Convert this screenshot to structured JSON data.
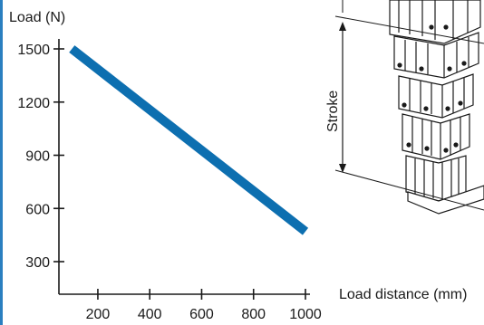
{
  "chart_data": {
    "type": "line",
    "title": "",
    "ylabel": "Load (N)",
    "xlabel": "Load distance (mm)",
    "xlim": [
      50,
      1000
    ],
    "ylim": [
      0,
      1600
    ],
    "x_ticks": [
      200,
      400,
      600,
      800,
      1000
    ],
    "y_ticks": [
      300,
      600,
      900,
      1200,
      1500
    ],
    "grid": false,
    "series": [
      {
        "color": "#0d6fb0",
        "points": [
          {
            "x": 100,
            "y": 1500
          },
          {
            "x": 1000,
            "y": 470
          }
        ]
      }
    ]
  },
  "diagram": {
    "stroke_label": "Stroke"
  },
  "colors": {
    "line": "#0d6fb0",
    "left_border": "#2a7fc0",
    "axis": "#1a1a1a"
  }
}
